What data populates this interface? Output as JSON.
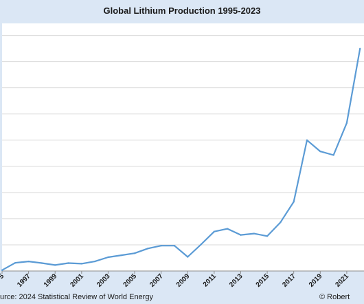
{
  "chart_data": {
    "type": "line",
    "title": "Global Lithium Production 1995-2023",
    "source": "urce: 2024 Statistical Review of World Energy",
    "credit": "© Robert",
    "x_tick_labels": [
      "5",
      "1997",
      "1999",
      "2001",
      "2003",
      "2005",
      "2007",
      "2009",
      "2011",
      "2013",
      "2015",
      "2017",
      "2019",
      "2021"
    ],
    "x": [
      1995,
      1996,
      1997,
      1998,
      1999,
      2000,
      2001,
      2002,
      2003,
      2004,
      2005,
      2006,
      2007,
      2008,
      2009,
      2010,
      2011,
      2012,
      2013,
      2014,
      2015,
      2016,
      2017,
      2018,
      2019,
      2020,
      2021,
      2022
    ],
    "series": [
      {
        "values": [
          0.3,
          2.9,
          3.4,
          2.8,
          2.1,
          2.8,
          2.6,
          3.4,
          4.9,
          5.6,
          6.3,
          8.0,
          9.0,
          9.0,
          5.0,
          9.4,
          14.0,
          15.0,
          12.8,
          13.3,
          12.4,
          17.3,
          24.6,
          46.5,
          42.5,
          41.2,
          52.6,
          79.0
        ],
        "color": "#5b9bd5"
      }
    ],
    "ylim": [
      0,
      88
    ],
    "xlim": [
      1995,
      2022.3
    ],
    "grid": true,
    "y_grid_step": 9.3
  }
}
